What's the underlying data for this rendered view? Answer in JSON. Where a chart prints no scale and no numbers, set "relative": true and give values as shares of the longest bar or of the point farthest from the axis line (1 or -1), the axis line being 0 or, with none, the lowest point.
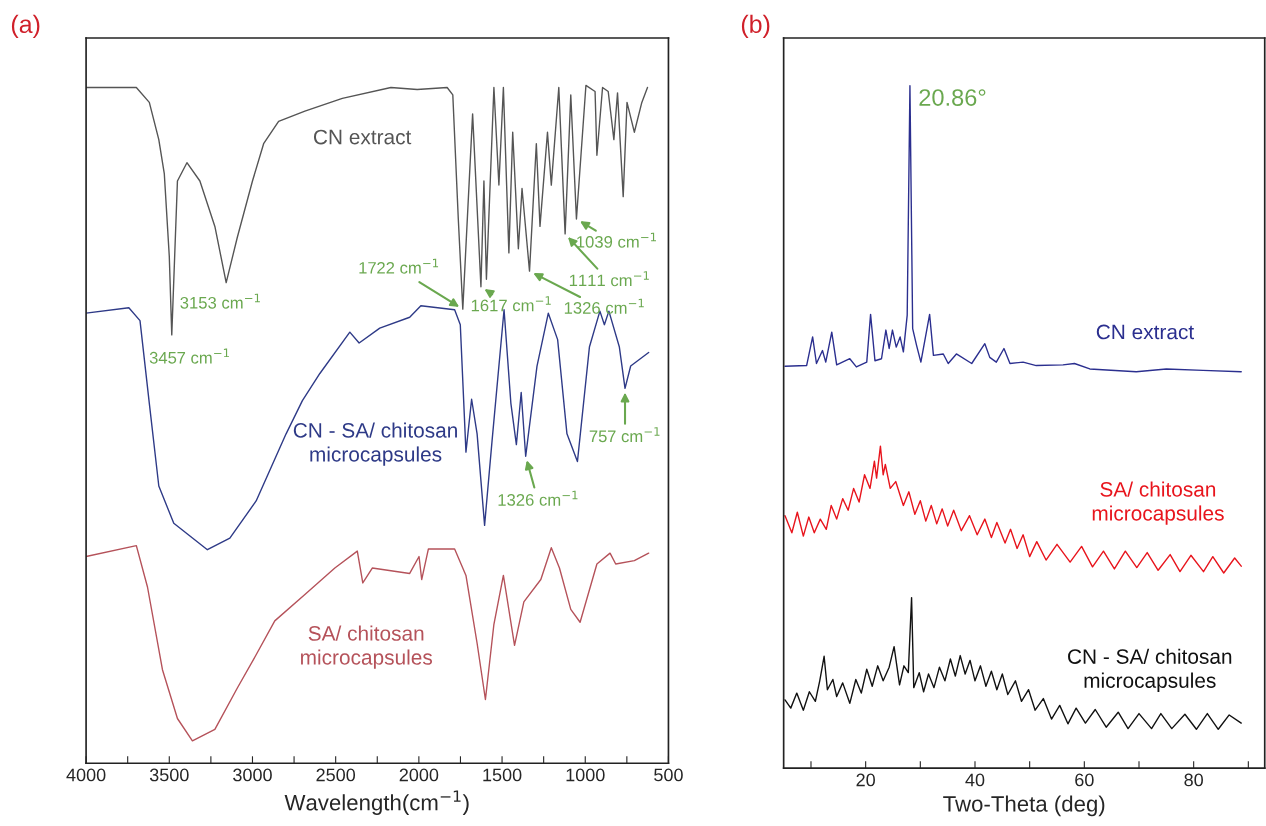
{
  "chart_data": [
    {
      "type": "line",
      "title": "(a)",
      "xlabel": "Wavelength(cm$^{−1}$)",
      "relative": true,
      "tick_labels": "x",
      "xlim": [
        4000,
        500
      ],
      "xticks": [
        4000,
        {
          "value": 3750,
          "label": null
        },
        3500,
        {
          "value": 3250,
          "label": null
        },
        3000,
        {
          "value": 2750,
          "label": null
        },
        2500,
        {
          "value": 2250,
          "label": null
        },
        2000,
        {
          "value": 1750,
          "label": null
        },
        1500,
        {
          "value": 1250,
          "label": null
        },
        1000,
        {
          "value": 750,
          "label": null
        },
        500
      ],
      "series": [
        {
          "name": "CN extract",
          "color": "#555555",
          "x": [
            4000,
            3698,
            3620,
            3563,
            3530,
            3500,
            3485,
            3451,
            3394,
            3316,
            3226,
            3158,
            3091,
            3000,
            2933,
            2843,
            2685,
            2460,
            2168,
            2010,
            1830,
            1796,
            1763,
            1736,
            1677,
            1627,
            1609,
            1594,
            1549,
            1519,
            1492,
            1459,
            1436,
            1402,
            1380,
            1335,
            1294,
            1272,
            1227,
            1204,
            1159,
            1121,
            1087,
            1053,
            996,
            941,
            930,
            896,
            862,
            828,
            806,
            772,
            749,
            705,
            660,
            626
          ],
          "values": [
            0.997,
            0.997,
            0.975,
            0.92,
            0.87,
            0.748,
            0.632,
            0.859,
            0.886,
            0.859,
            0.792,
            0.709,
            0.776,
            0.859,
            0.914,
            0.947,
            0.962,
            0.981,
            0.997,
            0.994,
            0.997,
            0.986,
            0.803,
            0.67,
            0.958,
            0.703,
            0.859,
            0.714,
            0.997,
            0.853,
            0.997,
            0.753,
            0.931,
            0.759,
            0.848,
            0.726,
            0.914,
            0.792,
            0.931,
            0.853,
            0.997,
            0.781,
            0.986,
            0.803,
            1.0,
            0.991,
            0.897,
            0.997,
            0.991,
            0.92,
            0.989,
            0.836,
            0.975,
            0.931,
            0.975,
            0.997
          ]
        },
        {
          "name": "CN - SA/ chitosan\nmicrocapsules",
          "color": "#2e3a87",
          "x": [
            4000,
            3743,
            3676,
            3620,
            3563,
            3473,
            3271,
            3136,
            2978,
            2798,
            2700,
            2595,
            2415,
            2359,
            2235,
            2055,
            1988,
            1785,
            1751,
            1717,
            1683,
            1650,
            1605,
            1560,
            1488,
            1447,
            1414,
            1385,
            1358,
            1290,
            1222,
            1166,
            1110,
            1047,
            975,
            912,
            885,
            858,
            795,
            761,
            727,
            619
          ],
          "values": [
            0.664,
            0.672,
            0.653,
            0.531,
            0.409,
            0.354,
            0.315,
            0.332,
            0.387,
            0.486,
            0.535,
            0.575,
            0.636,
            0.62,
            0.642,
            0.658,
            0.675,
            0.669,
            0.647,
            0.459,
            0.537,
            0.486,
            0.351,
            0.476,
            0.669,
            0.531,
            0.47,
            0.547,
            0.453,
            0.586,
            0.664,
            0.625,
            0.486,
            0.445,
            0.614,
            0.667,
            0.647,
            0.667,
            0.614,
            0.553,
            0.586,
            0.606
          ]
        },
        {
          "name": "SA/ chitosan\nmicrocapsules",
          "color": "#b5525a",
          "x": [
            4000,
            3698,
            3631,
            3541,
            3451,
            3361,
            3226,
            3091,
            2978,
            2866,
            2685,
            2505,
            2370,
            2337,
            2280,
            2055,
            1999,
            1983,
            1943,
            1785,
            1717,
            1650,
            1600,
            1549,
            1492,
            1425,
            1369,
            1267,
            1204,
            1155,
            1087,
            1031,
            930,
            851,
            817,
            705,
            619
          ],
          "values": [
            0.305,
            0.321,
            0.26,
            0.138,
            0.066,
            0.033,
            0.05,
            0.111,
            0.16,
            0.21,
            0.249,
            0.288,
            0.313,
            0.266,
            0.288,
            0.28,
            0.305,
            0.271,
            0.316,
            0.316,
            0.277,
            0.177,
            0.094,
            0.205,
            0.277,
            0.174,
            0.238,
            0.271,
            0.318,
            0.288,
            0.227,
            0.208,
            0.294,
            0.31,
            0.294,
            0.299,
            0.31
          ]
        }
      ],
      "annotations": [
        {
          "text": "3153 cm$^{−1}$",
          "x": 3158,
          "y": 0.709
        },
        {
          "text": "3457 cm$^{−1}$",
          "x": 3485,
          "y": 0.632
        },
        {
          "text": "1722 cm$^{−1}$",
          "x": 1736,
          "y": 0.67
        },
        {
          "text": "1617 cm$^{−1}$",
          "x": 1627,
          "y": 0.703
        },
        {
          "text": "1326 cm$^{−1}$",
          "x": 1335,
          "y": 0.726
        },
        {
          "text": "1111 cm$^{−1}$",
          "x": 1121,
          "y": 0.781
        },
        {
          "text": "1039 cm$^{−1}$",
          "x": 1053,
          "y": 0.803
        },
        {
          "text": "1326 cm$^{−1}$",
          "x": 1358,
          "y": 0.453
        },
        {
          "text": "757 cm$^{−1}$",
          "x": 761,
          "y": 0.553
        }
      ]
    },
    {
      "type": "line",
      "title": "(b)",
      "xlabel": "Two-Theta (deg)",
      "relative": true,
      "tick_labels": "x",
      "xlim": [
        5,
        93
      ],
      "xticks": [
        {
          "value": 10,
          "label": null
        },
        20,
        {
          "value": 30,
          "label": null
        },
        40,
        {
          "value": 50,
          "label": null
        },
        60,
        {
          "value": 70,
          "label": null
        },
        80,
        {
          "value": 90,
          "label": null
        }
      ],
      "series": [
        {
          "name": "CN extract",
          "color": "#2b2f8f",
          "x": [
            5.25,
            9.2,
            10.3,
            11.0,
            12.1,
            12.7,
            13.8,
            14.7,
            17.1,
            18.3,
            20.2,
            20.9,
            21.7,
            22.9,
            23.7,
            24.3,
            24.9,
            25.6,
            26.3,
            26.9,
            27.6,
            28.1,
            28.6,
            29.3,
            30.1,
            31.7,
            32.4,
            34.2,
            35.1,
            36.6,
            39.4,
            41.8,
            42.7,
            43.9,
            45.3,
            46.4,
            48.8,
            51.2,
            56.1,
            58.2,
            61.0,
            69.5,
            75.0,
            81.7,
            88.7
          ],
          "values": [
            0.589,
            0.59,
            0.632,
            0.593,
            0.612,
            0.595,
            0.639,
            0.591,
            0.6,
            0.588,
            0.595,
            0.665,
            0.597,
            0.6,
            0.642,
            0.615,
            0.642,
            0.617,
            0.632,
            0.61,
            0.664,
            1.0,
            0.644,
            0.62,
            0.595,
            0.665,
            0.605,
            0.607,
            0.593,
            0.607,
            0.593,
            0.622,
            0.602,
            0.595,
            0.615,
            0.593,
            0.595,
            0.59,
            0.591,
            0.593,
            0.585,
            0.581,
            0.585,
            0.583,
            0.581
          ]
        },
        {
          "name": "SA/ chitosan\nmicrocapsules",
          "color": "#e8141c",
          "x": [
            5.25,
            6.5,
            7.5,
            8.6,
            9.6,
            10.6,
            11.7,
            12.8,
            13.7,
            14.7,
            15.8,
            16.8,
            17.8,
            18.8,
            19.8,
            20.8,
            21.6,
            22.0,
            22.7,
            23.2,
            23.6,
            24.5,
            25.5,
            26.9,
            27.9,
            29.0,
            30.0,
            31.0,
            32.0,
            33.0,
            34.0,
            35.0,
            36.1,
            37.5,
            39.0,
            40.4,
            41.8,
            43.0,
            44.0,
            45.5,
            46.5,
            47.7,
            48.8,
            50.0,
            51.3,
            53.0,
            55.0,
            57.4,
            59.5,
            61.5,
            63.5,
            65.5,
            67.5,
            69.6,
            71.5,
            73.5,
            75.7,
            77.5,
            79.5,
            81.8,
            83.5,
            85.5,
            87.5,
            88.7
          ],
          "values": [
            0.37,
            0.345,
            0.375,
            0.34,
            0.368,
            0.345,
            0.365,
            0.35,
            0.385,
            0.365,
            0.395,
            0.378,
            0.41,
            0.39,
            0.43,
            0.41,
            0.45,
            0.425,
            0.472,
            0.43,
            0.445,
            0.41,
            0.42,
            0.385,
            0.405,
            0.372,
            0.392,
            0.362,
            0.385,
            0.358,
            0.38,
            0.355,
            0.378,
            0.348,
            0.37,
            0.342,
            0.365,
            0.338,
            0.36,
            0.33,
            0.35,
            0.322,
            0.342,
            0.31,
            0.332,
            0.305,
            0.328,
            0.302,
            0.325,
            0.295,
            0.318,
            0.292,
            0.318,
            0.294,
            0.316,
            0.29,
            0.313,
            0.288,
            0.312,
            0.288,
            0.31,
            0.286,
            0.308,
            0.296
          ]
        },
        {
          "name": "CN - SA/ chitosan\nmicrocapsules",
          "color": "#111111",
          "x": [
            5.25,
            6.3,
            7.4,
            8.6,
            9.7,
            10.8,
            11.6,
            12.4,
            13.0,
            14.0,
            14.7,
            15.8,
            17.1,
            18.2,
            19.2,
            20.2,
            21.2,
            22.2,
            23.2,
            24.3,
            25.2,
            26.2,
            27.0,
            27.8,
            28.4,
            28.8,
            29.8,
            30.6,
            31.5,
            32.5,
            33.5,
            34.5,
            35.5,
            36.4,
            37.3,
            38.2,
            39.1,
            40.0,
            41.0,
            42.0,
            43.0,
            44.0,
            45.0,
            46.0,
            47.4,
            48.5,
            49.8,
            51.0,
            52.5,
            54.0,
            55.5,
            57.0,
            58.5,
            60.2,
            62.0,
            64.0,
            66.2,
            68.0,
            70.0,
            72.3,
            74.0,
            76.0,
            78.4,
            80.5,
            82.5,
            84.5,
            86.5,
            88.7
          ],
          "values": [
            0.1,
            0.088,
            0.11,
            0.085,
            0.112,
            0.098,
            0.128,
            0.164,
            0.115,
            0.13,
            0.105,
            0.125,
            0.095,
            0.13,
            0.11,
            0.145,
            0.12,
            0.15,
            0.128,
            0.148,
            0.178,
            0.122,
            0.15,
            0.14,
            0.25,
            0.118,
            0.14,
            0.112,
            0.138,
            0.118,
            0.148,
            0.128,
            0.16,
            0.135,
            0.165,
            0.138,
            0.158,
            0.128,
            0.15,
            0.12,
            0.142,
            0.115,
            0.138,
            0.108,
            0.128,
            0.098,
            0.115,
            0.085,
            0.102,
            0.072,
            0.092,
            0.065,
            0.088,
            0.066,
            0.086,
            0.06,
            0.082,
            0.058,
            0.08,
            0.058,
            0.08,
            0.058,
            0.079,
            0.057,
            0.08,
            0.057,
            0.078,
            0.066
          ]
        }
      ],
      "annotations": [
        {
          "text": "20.86°",
          "x": 28.1,
          "y": 1.0
        }
      ]
    }
  ]
}
